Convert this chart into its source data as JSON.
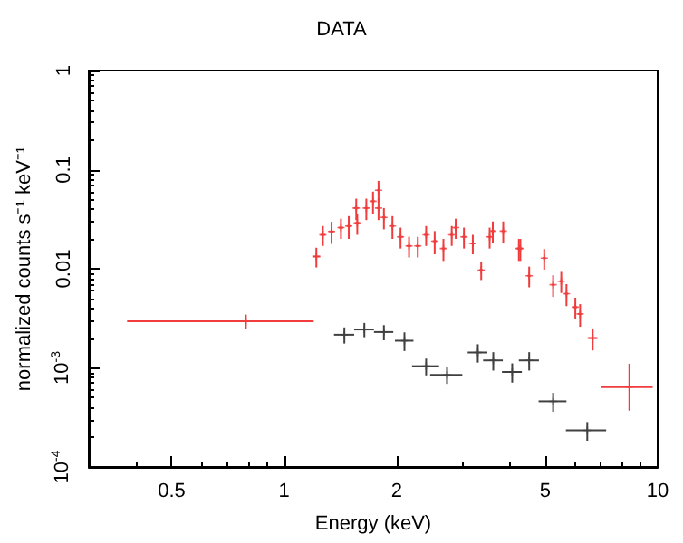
{
  "chart_data": {
    "type": "scatter",
    "title": "DATA",
    "xlabel": "Energy (keV)",
    "ylabel": "normalized counts s⁻¹ keV⁻¹",
    "log": "xy",
    "marker": "cross",
    "xlim": [
      0.3,
      10
    ],
    "xticks": [
      0.5,
      1,
      2,
      5,
      10
    ],
    "ylim": [
      0.0001,
      1
    ],
    "yticks": [
      {
        "value": 0.0001,
        "label": "10$^{-4}$"
      },
      {
        "value": 0.001,
        "label": "10$^{-3}$"
      },
      0.01,
      0.1,
      1
    ],
    "series": [
      {
        "color": "#f03c3c",
        "x": [
          0.79,
          1.22,
          1.27,
          1.34,
          1.42,
          1.49,
          1.56,
          1.57,
          1.66,
          1.73,
          1.79,
          1.79,
          1.85,
          1.95,
          2.05,
          2.16,
          2.28,
          2.4,
          2.53,
          2.67,
          2.81,
          2.88,
          3.03,
          3.2,
          3.37,
          3.55,
          3.62,
          3.86,
          4.25,
          4.29,
          4.53,
          4.97,
          5.25,
          5.52,
          5.7,
          6.02,
          6.2,
          6.7,
          8.4
        ],
        "values": [
          0.00295,
          0.0133,
          0.022,
          0.0238,
          0.026,
          0.027,
          0.041,
          0.029,
          0.041,
          0.048,
          0.041,
          0.062,
          0.033,
          0.027,
          0.021,
          0.017,
          0.017,
          0.022,
          0.019,
          0.016,
          0.022,
          0.026,
          0.021,
          0.018,
          0.0097,
          0.021,
          0.024,
          0.024,
          0.016,
          0.016,
          0.0085,
          0.0128,
          0.0069,
          0.0075,
          0.0056,
          0.0041,
          0.0035,
          0.002,
          0.00064
        ],
        "errors": [
          0.0005,
          0.003,
          0.005,
          0.006,
          0.006,
          0.007,
          0.01,
          0.007,
          0.01,
          0.012,
          0.01,
          0.015,
          0.008,
          0.007,
          0.005,
          0.004,
          0.004,
          0.005,
          0.005,
          0.004,
          0.005,
          0.006,
          0.005,
          0.004,
          0.002,
          0.005,
          0.006,
          0.006,
          0.004,
          0.004,
          0.002,
          0.003,
          0.0017,
          0.0018,
          0.0014,
          0.001,
          0.0009,
          0.0005,
          [
            0.00037,
            0.0011
          ]
        ],
        "xerrors": [
          [
            0.38,
            1.2
          ],
          0.03,
          0.02,
          0.02,
          0.02,
          0.02,
          0.02,
          0.02,
          0.02,
          0.02,
          0.02,
          0.02,
          0.02,
          0.02,
          0.03,
          0.03,
          0.03,
          0.03,
          0.03,
          0.03,
          0.03,
          0.03,
          0.04,
          0.04,
          0.04,
          0.04,
          0.04,
          0.04,
          0.05,
          0.05,
          0.05,
          0.05,
          0.05,
          0.06,
          0.06,
          0.07,
          0.08,
          0.2,
          [
            7.06,
            9.7
          ]
        ]
      },
      {
        "color": "#404040",
        "x": [
          1.45,
          1.64,
          1.85,
          2.1,
          2.4,
          2.73,
          3.3,
          3.63,
          4.08,
          4.53,
          5.25,
          6.48
        ],
        "values": [
          0.00216,
          0.00244,
          0.0023,
          0.00188,
          0.00104,
          0.00085,
          0.00143,
          0.00119,
          0.00091,
          0.00119,
          0.00046,
          0.000234
        ],
        "errors": [
          0.0004,
          0.0004,
          0.0004,
          0.0004,
          0.0002,
          0.00016,
          0.0003,
          0.00025,
          0.0002,
          0.00025,
          0.0001,
          5e-05
        ],
        "xerrors": [
          0.09,
          0.1,
          0.11,
          0.12,
          0.2,
          0.27,
          0.2,
          0.22,
          0.25,
          0.28,
          0.45,
          0.8
        ]
      }
    ]
  }
}
